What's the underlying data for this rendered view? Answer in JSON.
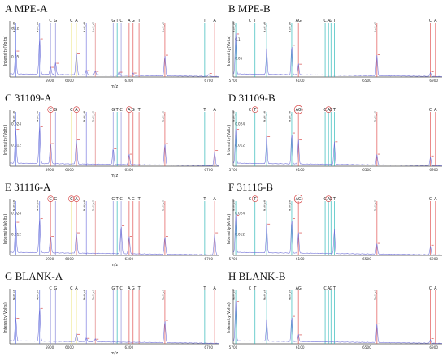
{
  "chart_data": [
    {
      "id": "A",
      "title": "A  MPE-A",
      "type": "line",
      "xlabel": "m/z",
      "ylabel": "Intensity(Volts)",
      "xlim": [
        5700,
        6750
      ],
      "ylim": [
        0,
        0.13
      ],
      "xticks": [
        5900,
        6000,
        6300,
        6700
      ],
      "yticks": [
        0.05,
        0.12
      ],
      "markers": [
        {
          "x": 5730,
          "color": "#5b6ee1",
          "label": "",
          "vlabel": "N.pH_pH"
        },
        {
          "x": 5850,
          "color": "#5b6ee1",
          "label": "",
          "vlabel": "N.pH_pH"
        },
        {
          "x": 5905,
          "color": "#8b8bd9",
          "label": "C"
        },
        {
          "x": 5930,
          "color": "#8b8bd9",
          "label": "G"
        },
        {
          "x": 6010,
          "color": "#e9e16b",
          "label": "C"
        },
        {
          "x": 6035,
          "color": "#e9e16b",
          "label": "A"
        },
        {
          "x": 6085,
          "color": "#7a7ae0",
          "label": "",
          "vlabel": "N.pH_pH"
        },
        {
          "x": 6130,
          "color": "#e08080",
          "label": "",
          "vlabel": "N.pH_pH"
        },
        {
          "x": 6220,
          "color": "#8b8bd9",
          "label": "G"
        },
        {
          "x": 6240,
          "color": "#2ab7b7",
          "label": "T"
        },
        {
          "x": 6260,
          "color": "#8b8bd9",
          "label": "C"
        },
        {
          "x": 6300,
          "color": "#e05050",
          "label": "A"
        },
        {
          "x": 6320,
          "color": "#e05050",
          "label": "G"
        },
        {
          "x": 6350,
          "color": "#e05050",
          "label": "T"
        },
        {
          "x": 6480,
          "color": "#e05050",
          "label": "",
          "vlabel": "N.pH_pH"
        },
        {
          "x": 6680,
          "color": "#2ab7b7",
          "label": "T"
        },
        {
          "x": 6730,
          "color": "#e05050",
          "label": "A"
        }
      ],
      "peaks": [
        [
          5730,
          0.06
        ],
        [
          5850,
          0.09
        ],
        [
          5905,
          0.02
        ],
        [
          5930,
          0.03
        ],
        [
          6035,
          0.055
        ],
        [
          6085,
          0.012
        ],
        [
          6130,
          0.01
        ],
        [
          6250,
          0.008
        ],
        [
          6320,
          0.006
        ],
        [
          6480,
          0.05
        ],
        [
          6700,
          0.005
        ]
      ]
    },
    {
      "id": "B",
      "title": "B MPE-B",
      "type": "line",
      "xlabel": "",
      "ylabel": "Intensity(Volts)",
      "xlim": [
        5700,
        6950
      ],
      "ylim": [
        0,
        0.14
      ],
      "xticks": [
        5700,
        6100,
        6500,
        6900
      ],
      "yticks": [
        0.05,
        0.1
      ],
      "markers": [
        {
          "x": 5715,
          "color": "#2ab7b7",
          "label": "",
          "vlabel": "N.pH_pH"
        },
        {
          "x": 5800,
          "color": "#2ab7b7",
          "label": "C"
        },
        {
          "x": 5830,
          "color": "#2ab7b7",
          "label": "T"
        },
        {
          "x": 5900,
          "color": "#2ab7b7",
          "label": "",
          "vlabel": "N.pH_pH"
        },
        {
          "x": 6050,
          "color": "#2ab7b7",
          "label": "",
          "vlabel": "N.pH_pH"
        },
        {
          "x": 6090,
          "color": "#e05050",
          "label": "AG"
        },
        {
          "x": 6250,
          "color": "#2ab7b7",
          "label": "C"
        },
        {
          "x": 6270,
          "color": "#2ab7b7",
          "label": "A"
        },
        {
          "x": 6285,
          "color": "#2ab7b7",
          "label": "G"
        },
        {
          "x": 6305,
          "color": "#2ab7b7",
          "label": "T"
        },
        {
          "x": 6560,
          "color": "#e05050",
          "label": "",
          "vlabel": "N.pH_pH"
        },
        {
          "x": 6880,
          "color": "#e05050",
          "label": "C"
        },
        {
          "x": 6910,
          "color": "#e05050",
          "label": "A"
        }
      ],
      "peaks": [
        [
          5715,
          0.11
        ],
        [
          5900,
          0.07
        ],
        [
          6050,
          0.08
        ],
        [
          6090,
          0.03
        ],
        [
          6560,
          0.055
        ],
        [
          6880,
          0.01
        ]
      ]
    },
    {
      "id": "C",
      "title": "C 31109-A",
      "type": "line",
      "xlabel": "m/z",
      "ylabel": "Intensity(Volts)",
      "xlim": [
        5700,
        6750
      ],
      "ylim": [
        0,
        0.03
      ],
      "xticks": [
        5900,
        6000,
        6300,
        6700
      ],
      "yticks": [
        0.012,
        0.024
      ],
      "markers": [
        {
          "x": 5730,
          "color": "#5b6ee1",
          "label": "",
          "vlabel": "N.pH_pH"
        },
        {
          "x": 5850,
          "color": "#5b6ee1",
          "label": "",
          "vlabel": "N.pH_pH"
        },
        {
          "x": 5905,
          "color": "#e05050",
          "label": "C"
        },
        {
          "x": 5930,
          "color": "#8b8bd9",
          "label": "G"
        },
        {
          "x": 6010,
          "color": "#e9e16b",
          "label": "C"
        },
        {
          "x": 6035,
          "color": "#e05050",
          "label": "A"
        },
        {
          "x": 6085,
          "color": "#7a7ae0",
          "label": "",
          "vlabel": "N.pH_pH"
        },
        {
          "x": 6130,
          "color": "#e08080",
          "label": "",
          "vlabel": "N.pH_pH"
        },
        {
          "x": 6220,
          "color": "#8b8bd9",
          "label": "G"
        },
        {
          "x": 6240,
          "color": "#2ab7b7",
          "label": "T"
        },
        {
          "x": 6260,
          "color": "#8b8bd9",
          "label": "C"
        },
        {
          "x": 6300,
          "color": "#e05050",
          "label": "A"
        },
        {
          "x": 6320,
          "color": "#e05050",
          "label": "G"
        },
        {
          "x": 6350,
          "color": "#e05050",
          "label": "T"
        },
        {
          "x": 6480,
          "color": "#e05050",
          "label": "",
          "vlabel": "N.pH_pH"
        },
        {
          "x": 6680,
          "color": "#2ab7b7",
          "label": "T"
        },
        {
          "x": 6730,
          "color": "#e05050",
          "label": "A"
        }
      ],
      "circled": [
        "C",
        "A",
        "A"
      ],
      "peaks": [
        [
          5730,
          0.02
        ],
        [
          5850,
          0.022
        ],
        [
          5905,
          0.012
        ],
        [
          6035,
          0.014
        ],
        [
          6220,
          0.009
        ],
        [
          6300,
          0.006
        ],
        [
          6480,
          0.012
        ],
        [
          6730,
          0.008
        ]
      ]
    },
    {
      "id": "D",
      "title": "D 31109-B",
      "type": "line",
      "xlabel": "",
      "ylabel": "Intensity(Volts)",
      "xlim": [
        5700,
        6950
      ],
      "ylim": [
        0,
        0.03
      ],
      "xticks": [
        5700,
        6100,
        6500,
        6900
      ],
      "yticks": [
        0.012,
        0.024
      ],
      "markers": [
        {
          "x": 5715,
          "color": "#2ab7b7",
          "label": "",
          "vlabel": "N.pH_pH"
        },
        {
          "x": 5800,
          "color": "#2ab7b7",
          "label": "C"
        },
        {
          "x": 5830,
          "color": "#2ab7b7",
          "label": "T"
        },
        {
          "x": 5900,
          "color": "#2ab7b7",
          "label": "",
          "vlabel": "N.pH_pH"
        },
        {
          "x": 6050,
          "color": "#2ab7b7",
          "label": "",
          "vlabel": "N.pH_pH"
        },
        {
          "x": 6090,
          "color": "#e05050",
          "label": "AG"
        },
        {
          "x": 6250,
          "color": "#2ab7b7",
          "label": "C"
        },
        {
          "x": 6270,
          "color": "#2ab7b7",
          "label": "A"
        },
        {
          "x": 6285,
          "color": "#2ab7b7",
          "label": "G"
        },
        {
          "x": 6305,
          "color": "#2ab7b7",
          "label": "T"
        },
        {
          "x": 6560,
          "color": "#e05050",
          "label": "",
          "vlabel": "N.pH_pH"
        },
        {
          "x": 6880,
          "color": "#e05050",
          "label": "C"
        },
        {
          "x": 6910,
          "color": "#e05050",
          "label": "A"
        }
      ],
      "circled": [
        "AG",
        "T",
        "A"
      ],
      "peaks": [
        [
          5715,
          0.02
        ],
        [
          5900,
          0.016
        ],
        [
          6050,
          0.018
        ],
        [
          6090,
          0.014
        ],
        [
          6305,
          0.013
        ],
        [
          6560,
          0.006
        ],
        [
          6880,
          0.005
        ]
      ]
    },
    {
      "id": "E",
      "title": "E 31116-A",
      "type": "line",
      "xlabel": "m/z",
      "ylabel": "Intensity(Volts)",
      "xlim": [
        5700,
        6750
      ],
      "ylim": [
        0,
        0.03
      ],
      "xticks": [
        5900,
        6000,
        6300,
        6700
      ],
      "yticks": [
        0.012,
        0.024
      ],
      "markers": [
        {
          "x": 5730,
          "color": "#5b6ee1",
          "label": "",
          "vlabel": "N.pH_pH"
        },
        {
          "x": 5850,
          "color": "#5b6ee1",
          "label": "",
          "vlabel": "N.pH_pH"
        },
        {
          "x": 5905,
          "color": "#e05050",
          "label": "C"
        },
        {
          "x": 5930,
          "color": "#8b8bd9",
          "label": "G"
        },
        {
          "x": 6010,
          "color": "#e9e16b",
          "label": "C"
        },
        {
          "x": 6035,
          "color": "#e05050",
          "label": "A"
        },
        {
          "x": 6085,
          "color": "#7a7ae0",
          "label": "",
          "vlabel": "N.pH_pH"
        },
        {
          "x": 6130,
          "color": "#e08080",
          "label": "",
          "vlabel": "N.pH_pH"
        },
        {
          "x": 6220,
          "color": "#8b8bd9",
          "label": "G"
        },
        {
          "x": 6240,
          "color": "#2ab7b7",
          "label": "T"
        },
        {
          "x": 6260,
          "color": "#8b8bd9",
          "label": "C"
        },
        {
          "x": 6300,
          "color": "#e05050",
          "label": "A"
        },
        {
          "x": 6320,
          "color": "#e05050",
          "label": "G"
        },
        {
          "x": 6350,
          "color": "#e05050",
          "label": "T"
        },
        {
          "x": 6480,
          "color": "#e05050",
          "label": "",
          "vlabel": "N.pH_pH"
        },
        {
          "x": 6680,
          "color": "#2ab7b7",
          "label": "T"
        },
        {
          "x": 6730,
          "color": "#e05050",
          "label": "A"
        }
      ],
      "circled": [
        "C",
        "C",
        "A"
      ],
      "peaks": [
        [
          5730,
          0.018
        ],
        [
          5850,
          0.02
        ],
        [
          5905,
          0.01
        ],
        [
          6035,
          0.012
        ],
        [
          6260,
          0.016
        ],
        [
          6300,
          0.01
        ],
        [
          6480,
          0.01
        ],
        [
          6730,
          0.012
        ]
      ]
    },
    {
      "id": "F",
      "title": "F 31116-B",
      "type": "line",
      "xlabel": "",
      "ylabel": "Intensity(Volts)",
      "xlim": [
        5700,
        6950
      ],
      "ylim": [
        0,
        0.03
      ],
      "xticks": [
        5700,
        6100,
        6500,
        6900
      ],
      "yticks": [
        0.012,
        0.024
      ],
      "markers": [
        {
          "x": 5715,
          "color": "#2ab7b7",
          "label": "",
          "vlabel": "N.pH_pH"
        },
        {
          "x": 5800,
          "color": "#2ab7b7",
          "label": "C"
        },
        {
          "x": 5830,
          "color": "#2ab7b7",
          "label": "T"
        },
        {
          "x": 5900,
          "color": "#2ab7b7",
          "label": "",
          "vlabel": "N.pH_pH"
        },
        {
          "x": 6050,
          "color": "#2ab7b7",
          "label": "",
          "vlabel": "N.pH_pH"
        },
        {
          "x": 6090,
          "color": "#e05050",
          "label": "AG"
        },
        {
          "x": 6250,
          "color": "#2ab7b7",
          "label": "C"
        },
        {
          "x": 6270,
          "color": "#2ab7b7",
          "label": "A"
        },
        {
          "x": 6285,
          "color": "#2ab7b7",
          "label": "G"
        },
        {
          "x": 6305,
          "color": "#2ab7b7",
          "label": "T"
        },
        {
          "x": 6560,
          "color": "#e05050",
          "label": "",
          "vlabel": "N.pH_pH"
        },
        {
          "x": 6880,
          "color": "#e05050",
          "label": "C"
        },
        {
          "x": 6910,
          "color": "#e05050",
          "label": "A"
        }
      ],
      "circled": [
        "AG",
        "T",
        "A"
      ],
      "peaks": [
        [
          5715,
          0.022
        ],
        [
          5900,
          0.017
        ],
        [
          6050,
          0.02
        ],
        [
          6090,
          0.012
        ],
        [
          6305,
          0.014
        ],
        [
          6560,
          0.006
        ],
        [
          6880,
          0.005
        ]
      ]
    },
    {
      "id": "G",
      "title": "G BLANK-A",
      "type": "line",
      "xlabel": "m/z",
      "ylabel": "Intensity(Volts)",
      "xlim": [
        5700,
        6750
      ],
      "ylim": [
        0,
        0.13
      ],
      "xticks": [
        5900,
        6000,
        6300,
        6700
      ],
      "yticks": [],
      "markers": [
        {
          "x": 5730,
          "color": "#5b6ee1",
          "label": "",
          "vlabel": "N.pH_pH"
        },
        {
          "x": 5850,
          "color": "#5b6ee1",
          "label": "",
          "vlabel": "N.pH_pH"
        },
        {
          "x": 5905,
          "color": "#8b8bd9",
          "label": "C"
        },
        {
          "x": 5930,
          "color": "#8b8bd9",
          "label": "G"
        },
        {
          "x": 6010,
          "color": "#e9e16b",
          "label": "C"
        },
        {
          "x": 6035,
          "color": "#e9e16b",
          "label": "A"
        },
        {
          "x": 6085,
          "color": "#7a7ae0",
          "label": "",
          "vlabel": "N.pH_pH"
        },
        {
          "x": 6130,
          "color": "#e08080",
          "label": "",
          "vlabel": "N.pH_pH"
        },
        {
          "x": 6220,
          "color": "#8b8bd9",
          "label": "G"
        },
        {
          "x": 6240,
          "color": "#2ab7b7",
          "label": "T"
        },
        {
          "x": 6260,
          "color": "#8b8bd9",
          "label": "C"
        },
        {
          "x": 6300,
          "color": "#e05050",
          "label": "A"
        },
        {
          "x": 6320,
          "color": "#e05050",
          "label": "G"
        },
        {
          "x": 6350,
          "color": "#e05050",
          "label": "T"
        },
        {
          "x": 6480,
          "color": "#e05050",
          "label": "",
          "vlabel": "N.pH_pH"
        },
        {
          "x": 6680,
          "color": "#2ab7b7",
          "label": "T"
        },
        {
          "x": 6730,
          "color": "#e05050",
          "label": "A"
        }
      ],
      "peaks": [
        [
          5730,
          0.06
        ],
        [
          5850,
          0.085
        ],
        [
          6035,
          0.02
        ],
        [
          6085,
          0.01
        ],
        [
          6130,
          0.008
        ],
        [
          6480,
          0.055
        ]
      ]
    },
    {
      "id": "H",
      "title": "H BLANK-B",
      "type": "line",
      "xlabel": "",
      "ylabel": "Intensity(Volts)",
      "xlim": [
        5700,
        6950
      ],
      "ylim": [
        0,
        0.14
      ],
      "xticks": [
        5700,
        6100,
        6500,
        6900
      ],
      "yticks": [],
      "markers": [
        {
          "x": 5715,
          "color": "#2ab7b7",
          "label": "",
          "vlabel": "N.pH_pH"
        },
        {
          "x": 5800,
          "color": "#2ab7b7",
          "label": "C"
        },
        {
          "x": 5830,
          "color": "#2ab7b7",
          "label": "T"
        },
        {
          "x": 5900,
          "color": "#2ab7b7",
          "label": "",
          "vlabel": "N.pH_pH"
        },
        {
          "x": 6050,
          "color": "#2ab7b7",
          "label": "",
          "vlabel": "N.pH_pH"
        },
        {
          "x": 6090,
          "color": "#e05050",
          "label": "AG"
        },
        {
          "x": 6250,
          "color": "#2ab7b7",
          "label": "C"
        },
        {
          "x": 6270,
          "color": "#2ab7b7",
          "label": "A"
        },
        {
          "x": 6285,
          "color": "#2ab7b7",
          "label": "G"
        },
        {
          "x": 6305,
          "color": "#2ab7b7",
          "label": "T"
        },
        {
          "x": 6560,
          "color": "#e05050",
          "label": "",
          "vlabel": "N.pH_pH"
        },
        {
          "x": 6880,
          "color": "#e05050",
          "label": "C"
        },
        {
          "x": 6910,
          "color": "#e05050",
          "label": "A"
        }
      ],
      "peaks": [
        [
          5715,
          0.11
        ],
        [
          5900,
          0.06
        ],
        [
          6050,
          0.07
        ],
        [
          6090,
          0.02
        ],
        [
          6560,
          0.05
        ],
        [
          6880,
          0.01
        ]
      ]
    }
  ],
  "colors": {
    "trace": "#6b6bd6",
    "axis": "#444444",
    "peak_label": "#d32f2f",
    "circle": "#d32f2f"
  }
}
